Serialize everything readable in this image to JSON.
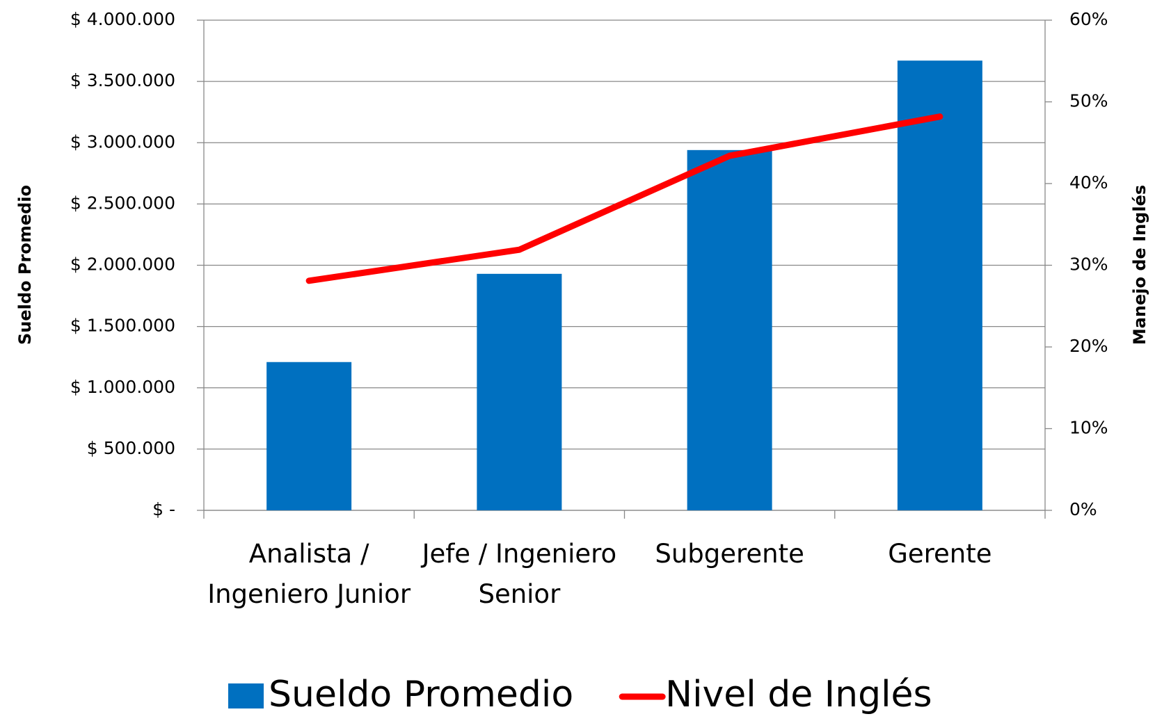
{
  "chart_data": {
    "type": "bar",
    "categories": [
      "Analista / Ingeniero Junior",
      "Jefe / Ingeniero Senior",
      "Subgerente",
      "Gerente"
    ],
    "series": [
      {
        "name": "Sueldo Promedio",
        "type": "bar",
        "color": "#0070c0",
        "values": [
          1210000,
          1930000,
          2940000,
          3670000
        ]
      },
      {
        "name": "Nivel de Inglés",
        "type": "line",
        "axis": "y2",
        "color": "#ff0000",
        "values": [
          28.1,
          31.9,
          43.4,
          48.2
        ]
      }
    ],
    "ylabel": "Sueldo Promedio",
    "y2label": "Manejo de Inglés",
    "ylim": [
      0,
      4000000
    ],
    "yticks": [
      {
        "value": 0,
        "label": "$ -"
      },
      {
        "value": 500000,
        "label": "$ 500.000"
      },
      {
        "value": 1000000,
        "label": "$ 1.000.000"
      },
      {
        "value": 1500000,
        "label": "$ 1.500.000"
      },
      {
        "value": 2000000,
        "label": "$ 2.000.000"
      },
      {
        "value": 2500000,
        "label": "$ 2.500.000"
      },
      {
        "value": 3000000,
        "label": "$ 3.000.000"
      },
      {
        "value": 3500000,
        "label": "$ 3.500.000"
      },
      {
        "value": 4000000,
        "label": "$ 4.000.000"
      }
    ],
    "y2lim": [
      0,
      60
    ],
    "y2ticks": [
      {
        "value": 0,
        "label": "0%"
      },
      {
        "value": 10,
        "label": "10%"
      },
      {
        "value": 20,
        "label": "20%"
      },
      {
        "value": 30,
        "label": "30%"
      },
      {
        "value": 40,
        "label": "40%"
      },
      {
        "value": 50,
        "label": "50%"
      },
      {
        "value": 60,
        "label": "60%"
      }
    ],
    "grid": true,
    "legend": "bottom"
  }
}
